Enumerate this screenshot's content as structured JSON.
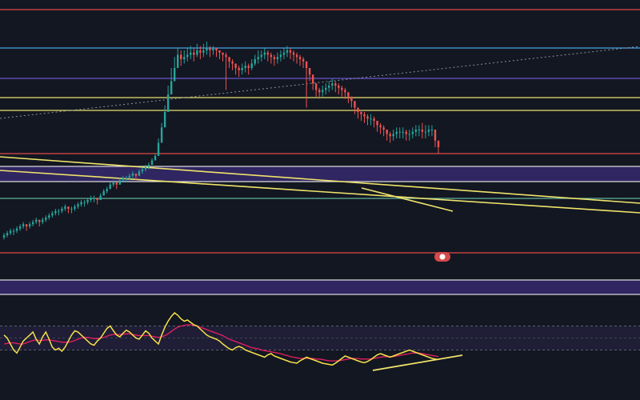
{
  "colors": {
    "background": "#131722",
    "candle_up": "#26a69a",
    "candle_down": "#ef5350",
    "rsi_line": "#f7e14a",
    "rsi_ma": "#e91e63",
    "rsi_band_fill": "#2a2547",
    "pivot_red": "#e04848",
    "pivot_blue": "#4aa3e6",
    "pivot_purple": "#6b55c8",
    "pivot_yellow": "#e8df6a",
    "pivot_white": "#d9d9d9",
    "pivot_green": "#5fb39a",
    "trendline": "#f0e36b",
    "zone_fill": "#3a2c78",
    "marker": "#d64a4a"
  },
  "chart_data": [
    {
      "type": "candlestick",
      "title": "",
      "xlabel": "",
      "ylabel": "",
      "grid": false,
      "legend": "none",
      "ylim": [
        0,
        100
      ],
      "x": [
        0,
        1,
        2,
        3,
        4,
        5,
        6,
        7,
        8,
        9,
        10,
        11,
        12,
        13,
        14,
        15,
        16,
        17,
        18,
        19,
        20,
        21,
        22,
        23,
        24,
        25,
        26,
        27,
        28,
        29,
        30,
        31,
        32,
        33,
        34,
        35,
        36,
        37,
        38,
        39,
        40,
        41,
        42,
        43,
        44,
        45,
        46,
        47,
        48,
        49,
        50,
        51,
        52,
        53,
        54,
        55,
        56,
        57,
        58,
        59,
        60,
        61,
        62,
        63,
        64,
        65,
        66,
        67,
        68,
        69,
        70,
        71,
        72,
        73,
        74,
        75,
        76,
        77,
        78,
        79,
        80,
        81,
        82,
        83,
        84,
        85,
        86,
        87,
        88,
        89,
        90,
        91,
        92,
        93,
        94,
        95,
        96,
        97,
        98,
        99,
        100,
        101,
        102,
        103,
        104,
        105,
        106,
        107,
        108,
        109,
        110,
        111,
        112,
        113,
        114,
        115,
        116,
        117,
        118,
        119,
        120,
        121,
        122,
        123,
        124,
        125,
        126,
        127,
        128,
        129,
        130,
        131,
        132,
        133,
        134,
        135
      ],
      "close": [
        4,
        5,
        6,
        6,
        7,
        8,
        9,
        8,
        9,
        10,
        11,
        10,
        11,
        12,
        13,
        14,
        15,
        15,
        16,
        17,
        16,
        16,
        17,
        18,
        19,
        19,
        20,
        21,
        21,
        20,
        22,
        24,
        25,
        27,
        28,
        27,
        29,
        30,
        30,
        31,
        32,
        31,
        33,
        34,
        35,
        36,
        38,
        40,
        46,
        53,
        60,
        68,
        74,
        80,
        86,
        84,
        85,
        86,
        87,
        86,
        88,
        87,
        88,
        89,
        88,
        89,
        88,
        87,
        86,
        85,
        83,
        82,
        80,
        79,
        80,
        81,
        80,
        82,
        84,
        85,
        86,
        87,
        86,
        85,
        84,
        85,
        86,
        87,
        88,
        87,
        86,
        85,
        84,
        83,
        80,
        77,
        73,
        70,
        69,
        70,
        71,
        72,
        73,
        72,
        71,
        70,
        69,
        67,
        65,
        62,
        60,
        59,
        58,
        57,
        57,
        56,
        54,
        53,
        52,
        50,
        49,
        50,
        51,
        51,
        51,
        50,
        50,
        51,
        52,
        52,
        51,
        51,
        52,
        52,
        47,
        44
      ],
      "high": [
        5,
        6,
        7,
        7,
        8,
        9,
        10,
        9,
        10,
        11,
        12,
        11,
        12,
        13,
        14,
        15,
        16,
        16,
        17,
        18,
        17,
        17,
        18,
        19,
        20,
        20,
        21,
        22,
        22,
        21,
        23,
        25,
        26,
        28,
        29,
        28,
        30,
        31,
        31,
        32,
        33,
        32,
        34,
        35,
        36,
        37,
        39,
        41,
        48,
        55,
        63,
        72,
        80,
        85,
        89,
        88,
        88,
        89,
        90,
        89,
        91,
        90,
        91,
        92,
        90,
        90,
        89,
        88,
        87,
        87,
        85,
        84,
        82,
        81,
        82,
        83,
        82,
        84,
        86,
        88,
        88,
        89,
        88,
        87,
        86,
        87,
        88,
        89,
        90,
        89,
        88,
        87,
        86,
        85,
        82,
        79,
        75,
        72,
        71,
        72,
        73,
        74,
        75,
        74,
        73,
        72,
        71,
        69,
        67,
        64,
        62,
        61,
        60,
        59,
        59,
        58,
        56,
        55,
        54,
        52,
        51,
        52,
        53,
        53,
        53,
        52,
        52,
        53,
        54,
        54,
        55,
        54,
        54,
        54,
        49,
        47
      ],
      "low": [
        2,
        3,
        4,
        4,
        5,
        6,
        7,
        6,
        7,
        8,
        9,
        8,
        9,
        10,
        11,
        12,
        13,
        13,
        14,
        15,
        14,
        14,
        15,
        16,
        17,
        17,
        18,
        19,
        19,
        18,
        20,
        22,
        23,
        25,
        26,
        25,
        27,
        28,
        28,
        29,
        30,
        29,
        31,
        32,
        33,
        34,
        36,
        38,
        42,
        48,
        55,
        63,
        70,
        76,
        82,
        81,
        82,
        83,
        84,
        83,
        85,
        84,
        85,
        86,
        85,
        86,
        85,
        84,
        83,
        70,
        80,
        79,
        77,
        76,
        77,
        78,
        77,
        79,
        81,
        82,
        83,
        84,
        83,
        82,
        81,
        82,
        83,
        84,
        85,
        84,
        83,
        82,
        81,
        80,
        62,
        74,
        70,
        67,
        66,
        67,
        68,
        69,
        70,
        69,
        68,
        67,
        66,
        64,
        62,
        59,
        57,
        56,
        55,
        54,
        54,
        53,
        51,
        50,
        49,
        47,
        46,
        47,
        48,
        48,
        48,
        47,
        47,
        48,
        49,
        49,
        48,
        48,
        49,
        49,
        44,
        41
      ]
    },
    {
      "type": "line",
      "title": "",
      "xlabel": "",
      "ylabel": "",
      "grid": false,
      "legend": "none",
      "ylim": [
        0,
        100
      ],
      "series": [
        {
          "values": [
            55,
            50,
            40,
            30,
            25,
            35,
            45,
            50,
            55,
            60,
            48,
            40,
            52,
            60,
            48,
            35,
            30,
            33,
            28,
            35,
            45,
            55,
            62,
            60,
            55,
            50,
            45,
            40,
            38,
            45,
            50,
            58,
            66,
            70,
            62,
            55,
            52,
            58,
            63,
            60,
            55,
            50,
            48,
            55,
            62,
            58,
            50,
            45,
            40,
            55,
            68,
            78,
            86,
            92,
            88,
            82,
            78,
            80,
            76,
            72,
            70,
            65,
            60,
            55,
            52,
            50,
            48,
            45,
            40,
            36,
            32,
            30,
            34,
            36,
            34,
            30,
            28,
            26,
            24,
            22,
            20,
            18,
            22,
            24,
            20,
            18,
            16,
            14,
            12,
            10,
            9,
            8,
            12,
            15,
            18,
            16,
            14,
            12,
            10,
            8,
            7,
            6,
            5,
            8,
            12,
            16,
            20,
            18,
            16,
            14,
            12,
            10,
            9,
            11,
            14,
            18,
            22,
            24,
            22,
            20,
            18,
            20,
            22,
            24,
            26,
            28,
            30,
            28,
            26,
            24,
            22,
            20,
            18,
            16,
            15,
            14
          ]
        },
        {
          "values": [
            40,
            41,
            42,
            42,
            41,
            40,
            40,
            42,
            44,
            46,
            47,
            46,
            46,
            47,
            47,
            46,
            45,
            44,
            43,
            43,
            43,
            44,
            46,
            48,
            50,
            51,
            51,
            50,
            49,
            49,
            50,
            51,
            53,
            55,
            56,
            56,
            56,
            56,
            57,
            57,
            56,
            55,
            54,
            54,
            54,
            54,
            53,
            52,
            51,
            52,
            54,
            57,
            61,
            65,
            68,
            70,
            71,
            72,
            72,
            71,
            70,
            68,
            66,
            64,
            62,
            60,
            58,
            56,
            54,
            51,
            48,
            46,
            44,
            42,
            40,
            38,
            36,
            34,
            33,
            32,
            30,
            29,
            28,
            27,
            26,
            25,
            24,
            22,
            21,
            19,
            18,
            17,
            16,
            16,
            16,
            16,
            16,
            15,
            15,
            14,
            13,
            12,
            12,
            12,
            12,
            13,
            14,
            15,
            16,
            16,
            16,
            15,
            15,
            15,
            15,
            16,
            17,
            18,
            19,
            19,
            19,
            19,
            20,
            21,
            22,
            23,
            24,
            25,
            25,
            25,
            24,
            23,
            22,
            21,
            20,
            19
          ]
        }
      ],
      "bands": [
        30,
        70
      ]
    }
  ]
}
